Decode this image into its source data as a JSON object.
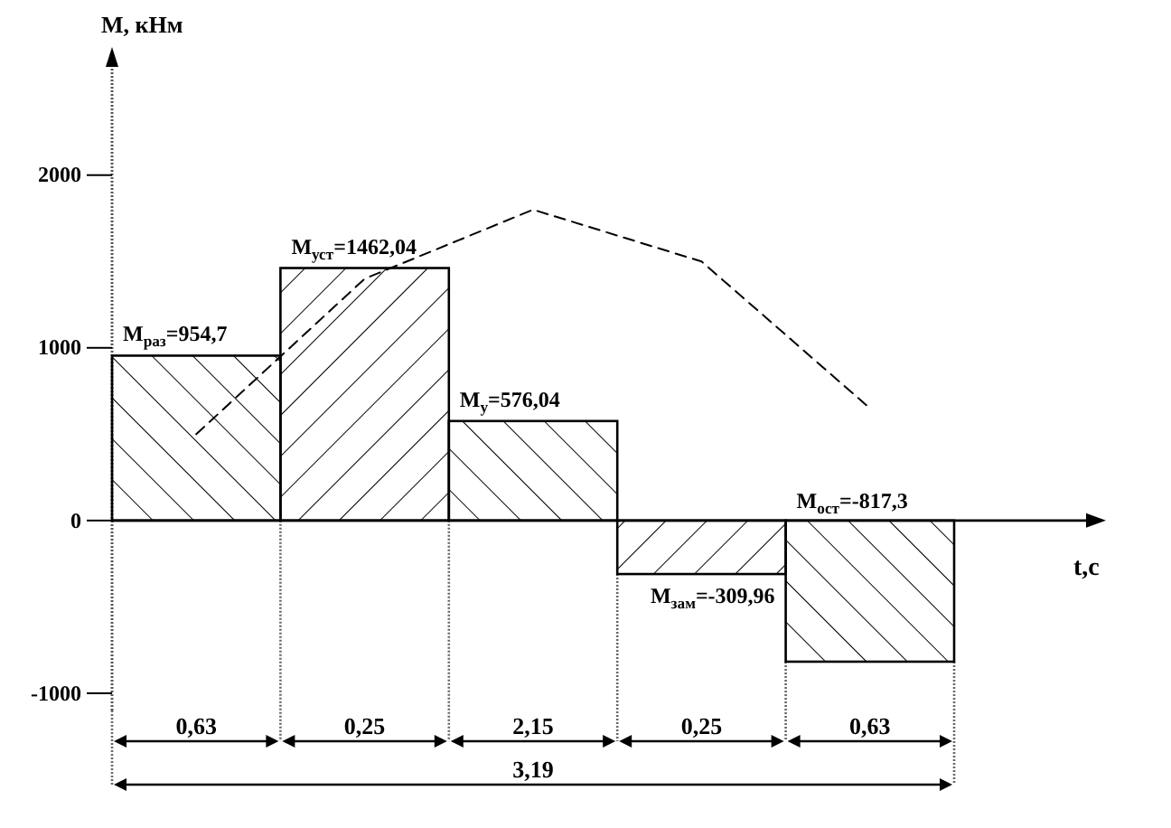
{
  "chart_data": {
    "type": "bar",
    "xlabel": "t,с",
    "ylabel": "M, кНм",
    "color": "#000000",
    "categories": [
      "0,63",
      "0,25",
      "2,15",
      "0,25",
      "0,63"
    ],
    "ylim": [
      -1100,
      2700
    ],
    "yticks": [
      -1000,
      0,
      1000,
      2000
    ],
    "values": [
      954.7,
      1462.04,
      576.04,
      -309.96,
      -817.3
    ],
    "value_labels": [
      "M$_{раз}$=954,7",
      "M$_{уст}$=1462,04",
      "M$_{у}$=576,04",
      "M$_{зам}$=-309,96",
      "M$_{ост}$=-817,3"
    ],
    "series": [
      {
        "type": "line",
        "color": "#000000",
        "line_style": "dashed",
        "values": [
          500,
          1400,
          1800,
          1500,
          650
        ]
      }
    ],
    "annotations": [
      "3,19"
    ]
  }
}
